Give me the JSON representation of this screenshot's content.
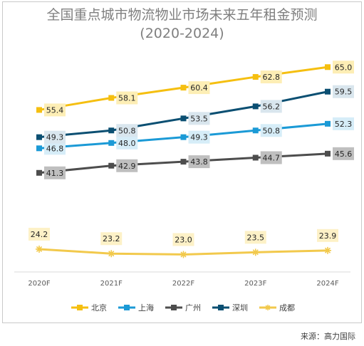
{
  "title_line1": "全国重点城市物流物业市场未来五年租金预测",
  "title_line2": "(2020-2024)",
  "source": "来源：高力国际",
  "chart_data": {
    "type": "line",
    "categories": [
      "2020F",
      "2021F",
      "2022F",
      "2023F",
      "2024F"
    ],
    "series": [
      {
        "name": "北京",
        "color": "#F5BF10",
        "label_bg": "#FDEEB5",
        "marker": "square",
        "values": [
          55.4,
          58.1,
          60.4,
          62.8,
          65.0
        ]
      },
      {
        "name": "上海",
        "color": "#1B9AD6",
        "label_bg": "#D6EDF8",
        "marker": "square",
        "values": [
          46.8,
          48.0,
          49.3,
          50.8,
          52.3
        ]
      },
      {
        "name": "广州",
        "color": "#4D4D4D",
        "label_bg": "#BFBFBF",
        "marker": "square",
        "values": [
          41.3,
          42.9,
          43.8,
          44.7,
          45.6
        ]
      },
      {
        "name": "深圳",
        "color": "#0B4F72",
        "label_bg": "#D9E6EE",
        "marker": "square",
        "values": [
          49.3,
          50.8,
          53.5,
          56.2,
          59.5
        ]
      },
      {
        "name": "成都",
        "color": "#F2C94C",
        "label_bg": "#FDF1C7",
        "marker": "star",
        "values": [
          24.2,
          23.2,
          23.0,
          23.5,
          23.9
        ]
      }
    ],
    "ylim": [
      21,
      66
    ],
    "grid": false,
    "legend": "bottom"
  }
}
